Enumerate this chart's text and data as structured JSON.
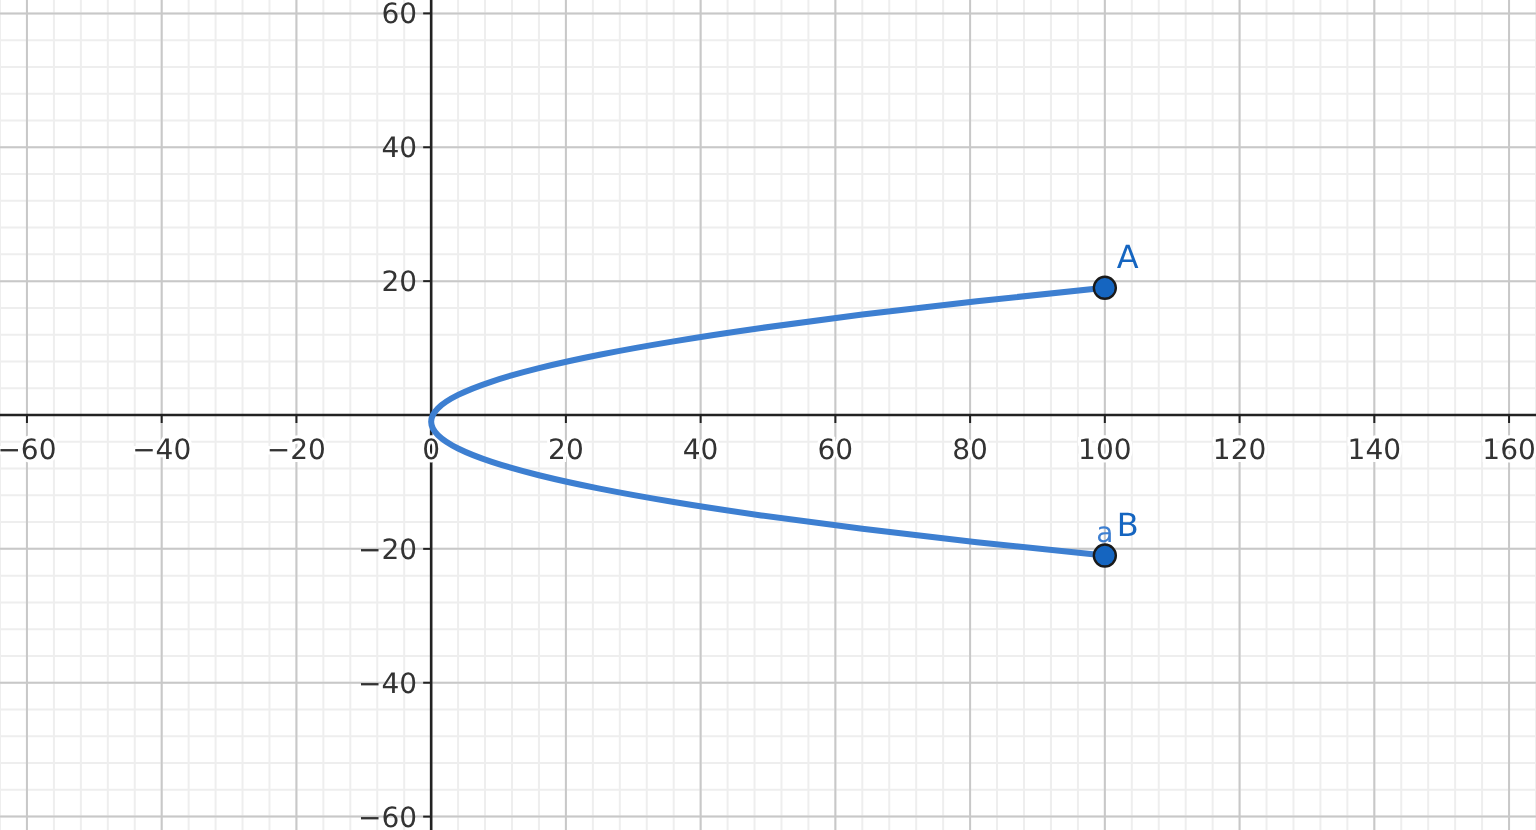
{
  "chart_data": {
    "type": "line",
    "xlim": [
      -64,
      164
    ],
    "ylim": [
      -62,
      62
    ],
    "xticks": [
      -60,
      -40,
      -20,
      0,
      20,
      40,
      60,
      80,
      100,
      120,
      140,
      160
    ],
    "yticks": [
      -60,
      -40,
      -20,
      {
        "value": 0,
        "label": null
      },
      20,
      40,
      60
    ],
    "grid": true,
    "legend": false,
    "series": [
      {
        "color": "#3d7fd1",
        "x": [
          100,
          81,
          64,
          49,
          36,
          25,
          16,
          9,
          4,
          1,
          0,
          1,
          4,
          9,
          16,
          25,
          36,
          49,
          64,
          81,
          100
        ],
        "values": [
          -21,
          -19,
          -17,
          -15,
          -13,
          -11,
          -9,
          -7,
          -5,
          -3,
          -1,
          1,
          3,
          5,
          7,
          9,
          11,
          13,
          15,
          17,
          19
        ],
        "marker": "none"
      },
      {
        "type": "scatter",
        "name": "A",
        "color": "#1565c0",
        "x": [
          100
        ],
        "values": [
          19
        ],
        "marker": "circle"
      },
      {
        "type": "scatter",
        "name": "B",
        "color": "#1565c0",
        "x": [
          100
        ],
        "values": [
          -21
        ],
        "marker": "circle"
      }
    ],
    "annotations": [
      {
        "text": "a",
        "x": 100,
        "y": -19
      }
    ]
  }
}
